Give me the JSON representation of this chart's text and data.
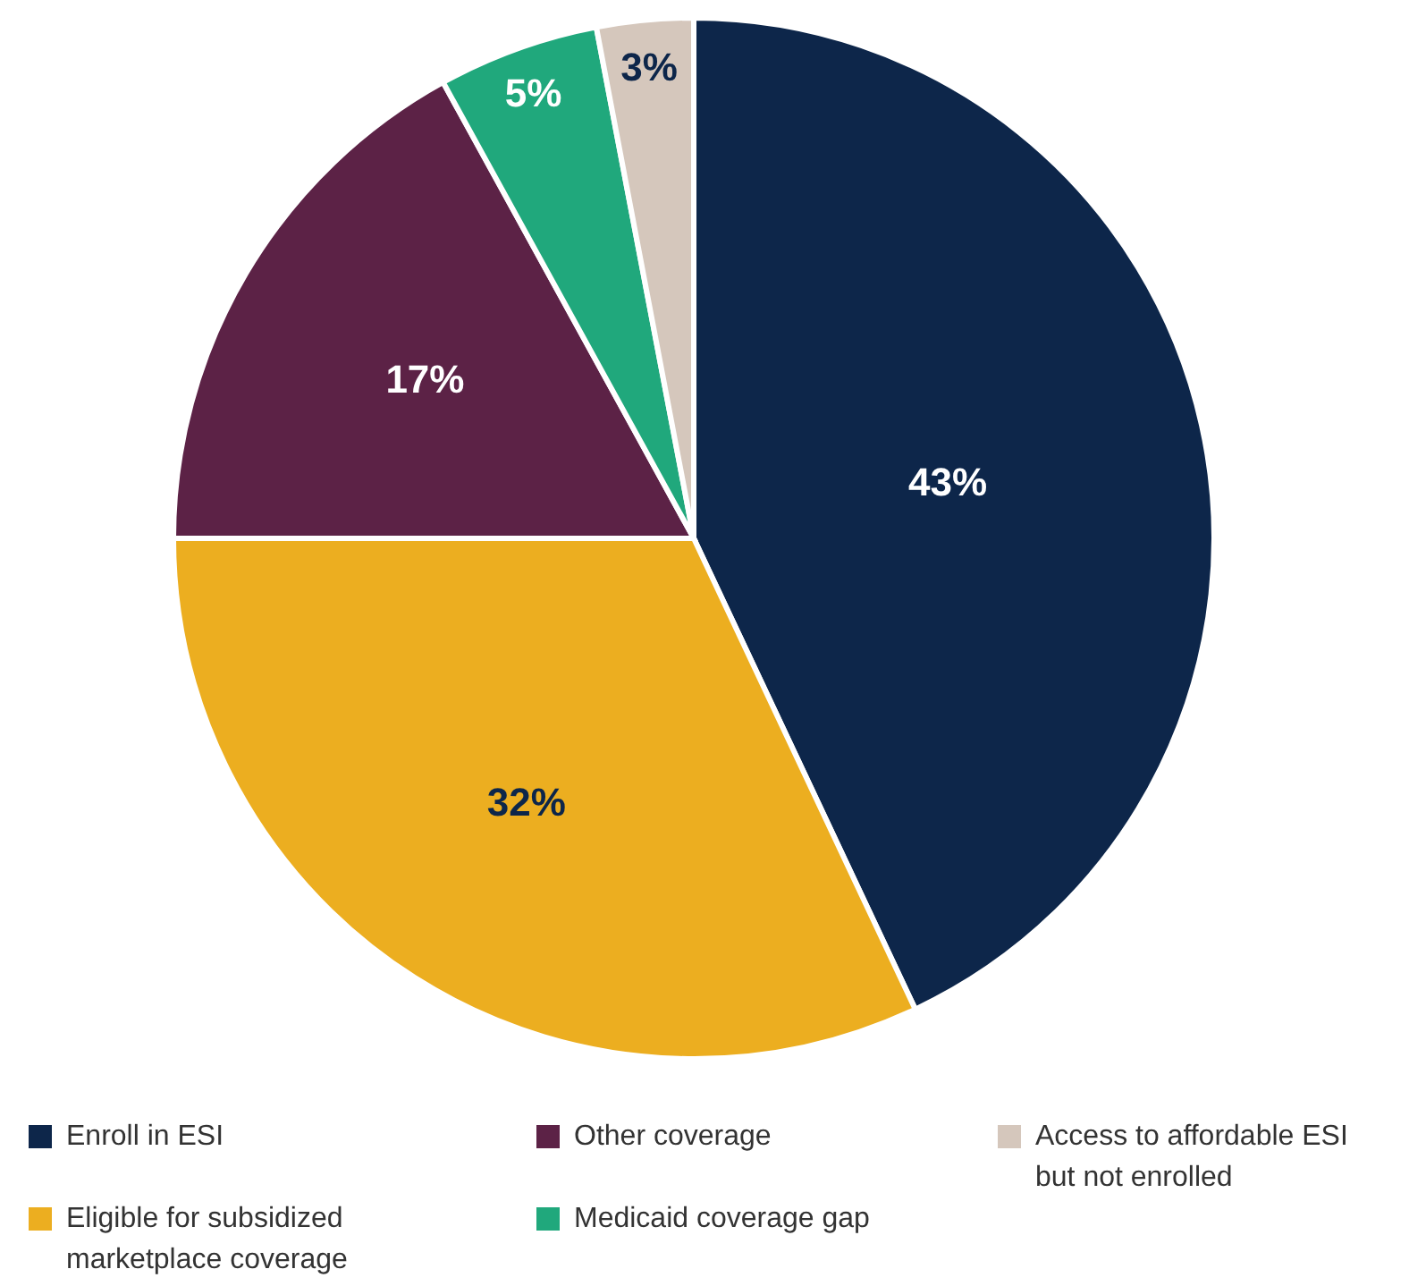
{
  "chart_data": {
    "type": "pie",
    "categories": [
      "Enroll in ESI",
      "Eligible for subsidized marketplace coverage",
      "Other coverage",
      "Medicaid coverage gap",
      "Access to affordable ESI but not enrolled"
    ],
    "values": [
      43,
      32,
      17,
      5,
      3
    ],
    "colors": [
      "#0d264a",
      "#ecae20",
      "#5c2246",
      "#20a87c",
      "#d5c7bc"
    ],
    "value_labels": [
      "43%",
      "32%",
      "17%",
      "5%",
      "3%"
    ],
    "legend": "bottom"
  }
}
